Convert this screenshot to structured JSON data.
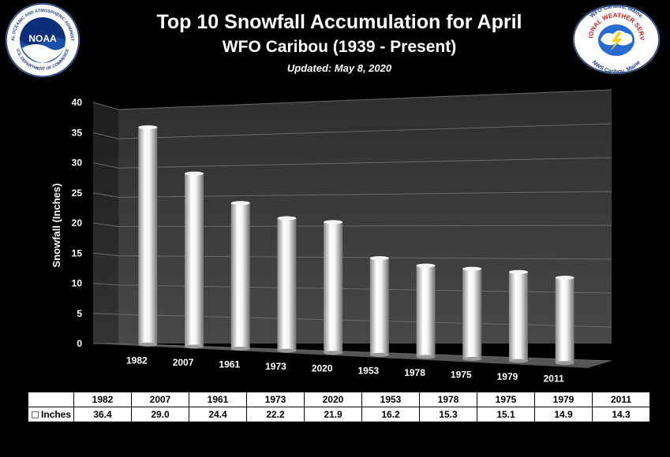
{
  "header": {
    "title": "Top 10 Snowfall Accumulation for April",
    "subtitle": "WFO Caribou (1939 - Present)",
    "updated": "Updated:  May 8, 2020"
  },
  "logos": {
    "noaa": {
      "name": "noaa-logo",
      "ring_text": "NATIONAL OCEANIC AND ATMOSPHERIC ADMINISTRATION",
      "bottom_text": "U.S. DEPARTMENT OF COMMERCE",
      "center_text": "NOAA"
    },
    "nws": {
      "name": "nws-logo",
      "top_text": "WFO Caribou, Maine",
      "ring_text": "NATIONAL WEATHER SERVICE",
      "bottom_text": "NWS Caribou, Maine"
    }
  },
  "colors": {
    "background": "#000000",
    "bar": "#ffffff",
    "plot_wall": "#3a3a3a",
    "floor": "#5a5a5a"
  },
  "chart_data": {
    "type": "bar",
    "ylabel": "Snowfall (Inches)",
    "ylim": [
      0,
      40
    ],
    "yticks": [
      0,
      5,
      10,
      15,
      20,
      25,
      30,
      35,
      40
    ],
    "categories": [
      "1982",
      "2007",
      "1961",
      "1973",
      "2020",
      "1953",
      "1978",
      "1975",
      "1979",
      "2011"
    ],
    "series": [
      {
        "name": "Inches",
        "values": [
          36.4,
          29.0,
          24.4,
          22.2,
          21.9,
          16.2,
          15.3,
          15.1,
          14.9,
          14.3
        ]
      }
    ],
    "table_values": [
      "36.4",
      "29.0",
      "24.4",
      "22.2",
      "21.9",
      "16.2",
      "15.3",
      "15.1",
      "14.9",
      "14.3"
    ],
    "grid": true,
    "legend": "data-table"
  }
}
